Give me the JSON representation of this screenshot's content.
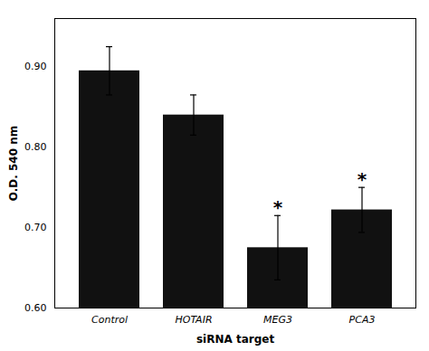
{
  "chart_data": {
    "type": "bar",
    "categories": [
      "Control",
      "HOTAIR",
      "MEG3",
      "PCA3"
    ],
    "values": [
      0.895,
      0.84,
      0.675,
      0.722
    ],
    "errors": [
      0.03,
      0.025,
      0.04,
      0.028
    ],
    "color": "#111111",
    "xlabel": "siRNA target",
    "ylabel": "O.D. 540 nm",
    "ylim": [
      0.6,
      0.96
    ],
    "yticks": [
      {
        "value": 0.6,
        "label": "0.60"
      },
      {
        "value": 0.7,
        "label": "0.70"
      },
      {
        "value": 0.8,
        "label": "0.80"
      },
      {
        "value": 0.9,
        "label": "0.90"
      }
    ],
    "annotations": [
      {
        "x": "MEG3",
        "text": "*"
      },
      {
        "x": "PCA3",
        "text": "*"
      }
    ],
    "grid": false
  }
}
